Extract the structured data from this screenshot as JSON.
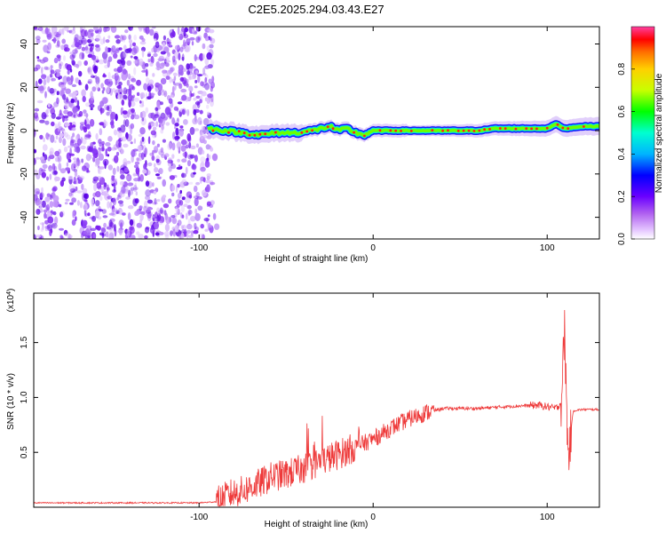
{
  "title": "C2E5.2025.294.03.43.E27",
  "chart_data": [
    {
      "id": "spectrogram",
      "type": "heatmap",
      "xlabel": "Height of straight line (km)",
      "ylabel": "Frequency (Hz)",
      "xlim": [
        -195,
        130
      ],
      "ylim": [
        -50,
        48
      ],
      "x_ticks": [
        -100,
        0,
        100
      ],
      "y_ticks": [
        -40,
        -20,
        0,
        20,
        40
      ],
      "noise_region": {
        "x": [
          -195,
          -92
        ],
        "y": [
          -50,
          48
        ]
      },
      "signal_ridge": {
        "x": [
          -95,
          -85,
          -75,
          -65,
          -55,
          -45,
          -35,
          -25,
          -20,
          -15,
          -10,
          -5,
          0,
          10,
          20,
          30,
          40,
          50,
          60,
          70,
          80,
          90,
          100,
          105,
          110,
          120,
          130
        ],
        "y": [
          1,
          0,
          -1,
          -2,
          -1,
          -1,
          0,
          2,
          0,
          1,
          -1,
          -2,
          0,
          0,
          0,
          0,
          0,
          0,
          0,
          1,
          1,
          1,
          1,
          3,
          1,
          2,
          2
        ]
      },
      "colorbar": {
        "label": "Normalized spectral amplitude",
        "range": [
          0.0,
          1.0
        ],
        "ticks": [
          "0.0",
          "0.2",
          "0.4",
          "0.6",
          "0.8"
        ],
        "tick_values": [
          0.0,
          0.2,
          0.4,
          0.6,
          0.8
        ]
      }
    },
    {
      "id": "snr",
      "type": "line",
      "xlabel": "Height of straight line (km)",
      "ylabel": "SNR (10 * v/v)",
      "scale_note_base": "(x10",
      "scale_note_exp": "4",
      "scale_note_close": ")",
      "xlim": [
        -195,
        130
      ],
      "ylim": [
        0,
        1.95
      ],
      "x_ticks": [
        -100,
        0,
        100
      ],
      "y_ticks": [
        "0.5",
        "1.0",
        "1.5"
      ],
      "y_tick_values": [
        0.5,
        1.0,
        1.5
      ],
      "color": "#ee3a3a",
      "series": [
        {
          "name": "SNR",
          "x": [
            -195,
            -150,
            -100,
            -90,
            -82,
            -75,
            -65,
            -58,
            -50,
            -40,
            -30,
            -20,
            -10,
            0,
            10,
            20,
            30,
            40,
            60,
            80,
            95,
            105,
            108,
            110,
            112,
            115,
            120,
            130
          ],
          "y": [
            0.04,
            0.04,
            0.04,
            0.05,
            0.12,
            0.15,
            0.22,
            0.28,
            0.3,
            0.35,
            0.42,
            0.48,
            0.55,
            0.62,
            0.72,
            0.8,
            0.86,
            0.9,
            0.9,
            0.92,
            0.93,
            0.9,
            0.95,
            1.6,
            0.45,
            0.88,
            0.89,
            0.89
          ]
        }
      ]
    }
  ]
}
